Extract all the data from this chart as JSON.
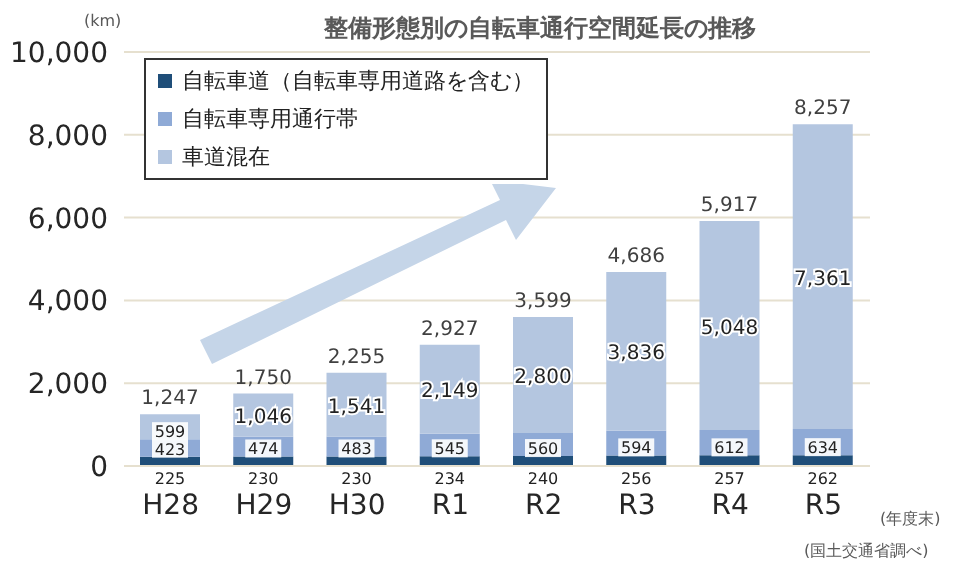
{
  "chart_data": {
    "type": "bar",
    "title": "整備形態別の自転車通行空間延長の推移",
    "annotations": [
      "(km)",
      "(年度末)",
      "(国土交通省調べ)"
    ],
    "categories": [
      "H28",
      "H29",
      "H30",
      "R1",
      "R2",
      "R3",
      "R4",
      "R5"
    ],
    "stacked": true,
    "series": [
      {
        "name": "自転車道（自転車専用道路を含む）",
        "color": "#1f4e79",
        "values": [
          225,
          230,
          230,
          234,
          240,
          256,
          257,
          262
        ],
        "value_labels": [
          "225",
          "230",
          "230",
          "234",
          "240",
          "256",
          "257",
          "262"
        ]
      },
      {
        "name": "自転車専用通行帯",
        "color": "#8faad6",
        "values": [
          423,
          474,
          483,
          545,
          560,
          594,
          612,
          634
        ],
        "value_labels": [
          "423",
          "474",
          "483",
          "545",
          "560",
          "594",
          "612",
          "634"
        ]
      },
      {
        "name": "車道混在",
        "color": "#b4c6e0",
        "values": [
          599,
          1046,
          1541,
          2149,
          2800,
          3836,
          5048,
          7361
        ],
        "value_labels": [
          "599",
          "1,046",
          "1,541",
          "2,149",
          "2,800",
          "3,836",
          "5,048",
          "7,361"
        ]
      }
    ],
    "totals": [
      "1,247",
      "1,750",
      "2,255",
      "2,927",
      "3,599",
      "4,686",
      "5,917",
      "8,257"
    ],
    "ylim": [
      0,
      10000
    ],
    "yticks": [
      0,
      {
        "value": 2000,
        "label": "2,000"
      },
      {
        "value": 4000,
        "label": "4,000"
      },
      {
        "value": 6000,
        "label": "6,000"
      },
      {
        "value": 8000,
        "label": "8,000"
      },
      {
        "value": 10000,
        "label": "10,000"
      }
    ],
    "grid": "y",
    "legend": "top left"
  }
}
